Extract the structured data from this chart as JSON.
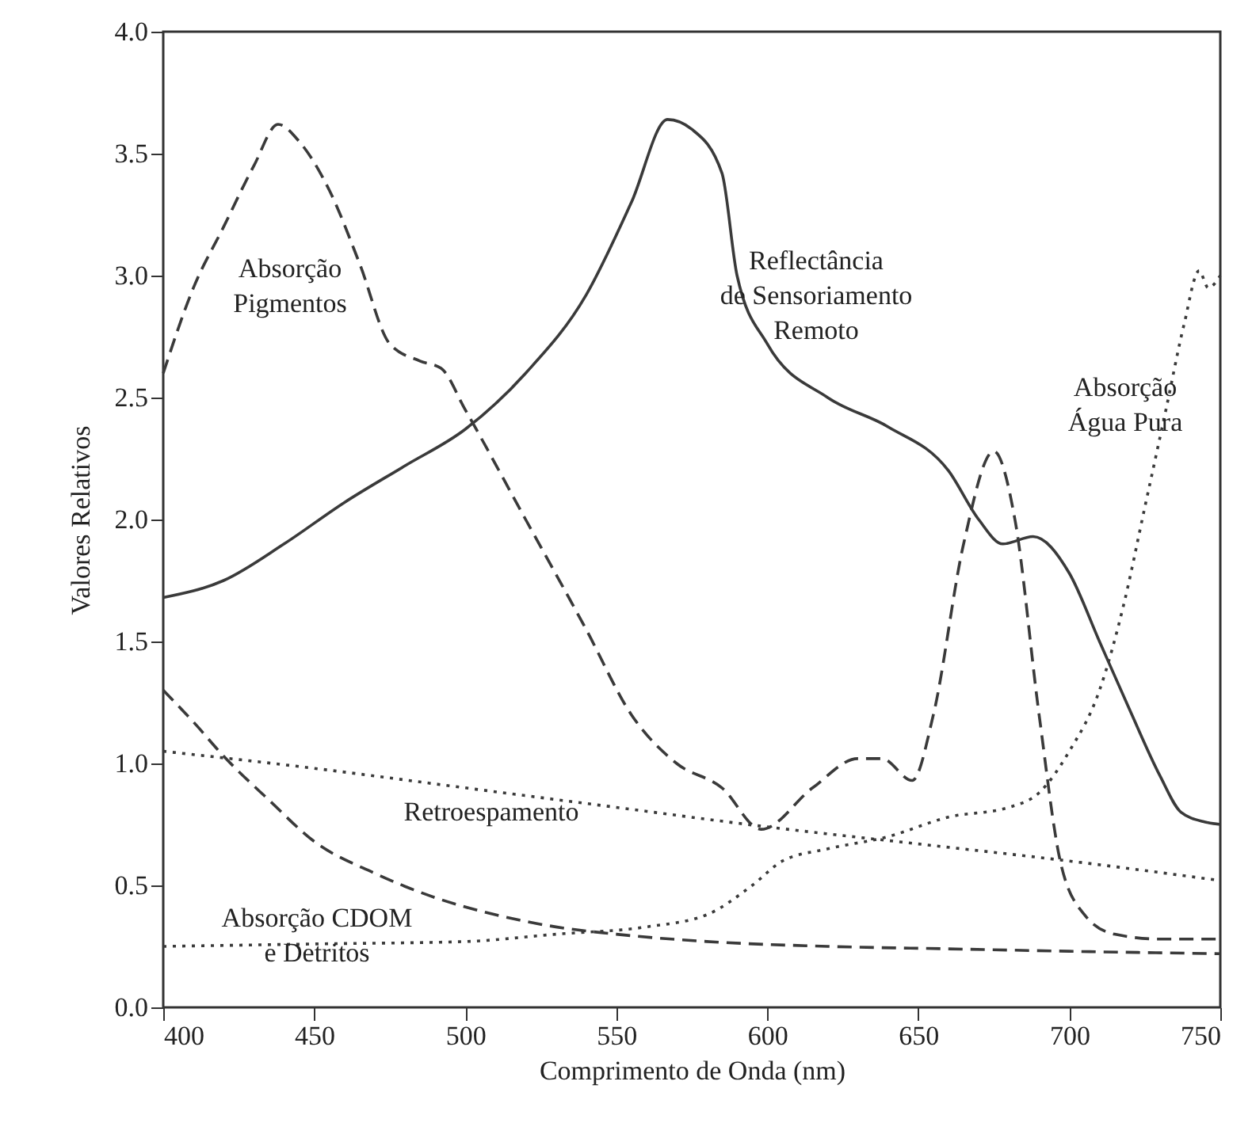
{
  "chart_data": {
    "type": "line",
    "xlabel": "Comprimento de Onda (nm)",
    "ylabel": "Valores Relativos",
    "xlim": [
      400,
      750
    ],
    "xticks": [
      400,
      450,
      500,
      550,
      600,
      650,
      700,
      750
    ],
    "ylim": [
      0,
      4
    ],
    "yticks": [
      {
        "value": 0,
        "label": "0.0"
      },
      0.5,
      {
        "value": 1,
        "label": "1.0"
      },
      1.5,
      {
        "value": 2,
        "label": "2.0"
      },
      2.5,
      {
        "value": 3,
        "label": "3.0"
      },
      3.5,
      {
        "value": 4,
        "label": "4.0"
      }
    ],
    "grid": false,
    "marker": "none",
    "series": [
      {
        "color": "#3a3a3a",
        "line_style": "solid",
        "x": [
          400,
          420,
          440,
          460,
          480,
          500,
          520,
          540,
          555,
          567,
          575,
          585,
          590,
          600,
          620,
          640,
          660,
          670,
          678,
          688,
          700,
          710,
          720,
          730,
          737,
          745,
          750
        ],
        "values": [
          1.68,
          1.75,
          1.9,
          2.07,
          2.22,
          2.37,
          2.6,
          2.92,
          3.3,
          3.64,
          3.6,
          3.42,
          3.0,
          2.72,
          2.5,
          2.38,
          2.2,
          2.0,
          1.9,
          1.93,
          1.78,
          1.5,
          1.22,
          0.95,
          0.8,
          0.76,
          0.75
        ]
      },
      {
        "color": "#3a3a3a",
        "line_style": "dashed",
        "x": [
          400,
          410,
          420,
          430,
          438,
          445,
          455,
          465,
          475,
          485,
          492,
          500,
          520,
          540,
          555,
          570,
          585,
          598,
          615,
          630,
          638,
          648,
          655,
          665,
          675,
          682,
          690,
          697,
          705,
          715,
          730,
          750
        ],
        "values": [
          2.6,
          2.95,
          3.2,
          3.45,
          3.62,
          3.55,
          3.35,
          3.05,
          2.72,
          2.65,
          2.62,
          2.45,
          2.0,
          1.55,
          1.2,
          1.0,
          0.9,
          0.73,
          0.9,
          1.02,
          1.02,
          0.93,
          1.2,
          1.9,
          2.28,
          2.0,
          1.2,
          0.6,
          0.38,
          0.3,
          0.28,
          0.28
        ]
      },
      {
        "color": "#3a3a3a",
        "line_style": "dotted",
        "x": [
          400,
          450,
          500,
          550,
          600,
          650,
          700,
          750
        ],
        "values": [
          1.05,
          0.98,
          0.9,
          0.82,
          0.74,
          0.67,
          0.6,
          0.52
        ]
      },
      {
        "color": "#3a3a3a",
        "line_style": "dotted",
        "x": [
          400,
          450,
          500,
          530,
          560,
          580,
          595,
          605,
          620,
          640,
          660,
          680,
          690,
          700,
          710,
          718,
          725,
          732,
          738,
          743,
          746,
          750
        ],
        "values": [
          0.25,
          0.26,
          0.27,
          0.3,
          0.33,
          0.38,
          0.5,
          0.6,
          0.65,
          0.7,
          0.78,
          0.82,
          0.88,
          1.05,
          1.3,
          1.65,
          2.05,
          2.45,
          2.8,
          3.02,
          2.95,
          3.0
        ]
      },
      {
        "color": "#3a3a3a",
        "line_style": "dashed",
        "x": [
          400,
          410,
          420,
          435,
          450,
          470,
          490,
          510,
          530,
          550,
          580,
          620,
          660,
          700,
          750
        ],
        "values": [
          1.3,
          1.17,
          1.03,
          0.85,
          0.68,
          0.55,
          0.45,
          0.38,
          0.33,
          0.3,
          0.27,
          0.25,
          0.24,
          0.23,
          0.22
        ]
      }
    ],
    "annotations": [
      "Absorção\nPigmentos",
      "Reflectância\nde Sensoriamento\nRemoto",
      "Absorção\nÁgua Pura",
      "Retroespamento",
      "Absorção CDOM\ne Detritos"
    ]
  }
}
